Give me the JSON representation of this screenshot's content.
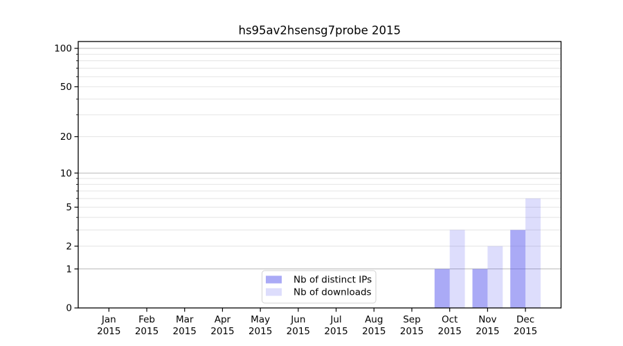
{
  "figure": {
    "background": "#FFFFFF"
  },
  "chart_data": {
    "type": "bar",
    "title": "hs95av2hsensg7probe 2015",
    "categories": [
      "Jan",
      "Feb",
      "Mar",
      "Apr",
      "May",
      "Jun",
      "Jul",
      "Aug",
      "Sep",
      "Oct",
      "Nov",
      "Dec"
    ],
    "year_label": "2015",
    "series": [
      {
        "key": "distinct_ips",
        "name": "Nb of distinct IPs",
        "base_color": "#5555EE",
        "alpha": 0.5,
        "rendered_color": "#AAAAF7",
        "values": [
          0,
          0,
          0,
          0,
          0,
          0,
          0,
          0,
          0,
          1,
          1,
          3
        ]
      },
      {
        "key": "downloads",
        "name": "Nb of downloads",
        "base_color": "#5555EE",
        "alpha": 0.2,
        "rendered_color": "#DCDCF8",
        "values": [
          0,
          0,
          0,
          0,
          0,
          0,
          0,
          0,
          0,
          3,
          2,
          6
        ]
      }
    ],
    "yscale": "log10(value+1)",
    "ylim": [
      0,
      113
    ],
    "yticks_labeled": [
      0,
      1,
      2,
      5,
      10,
      20,
      50,
      100
    ],
    "gridlines_major": [
      1,
      10,
      100
    ],
    "gridlines_minor": [
      2,
      3,
      4,
      5,
      6,
      7,
      8,
      9,
      20,
      30,
      40,
      50,
      60,
      70,
      80,
      90
    ],
    "grid": true,
    "legend": {
      "position": "lower center"
    },
    "colors": {
      "major_grid": "#B8B8B8",
      "minor_grid": "#E4E4E4",
      "axis": "#000000",
      "text": "#000000",
      "legend_border": "#D2D2D2",
      "legend_bg": "#FFFFFF"
    }
  }
}
